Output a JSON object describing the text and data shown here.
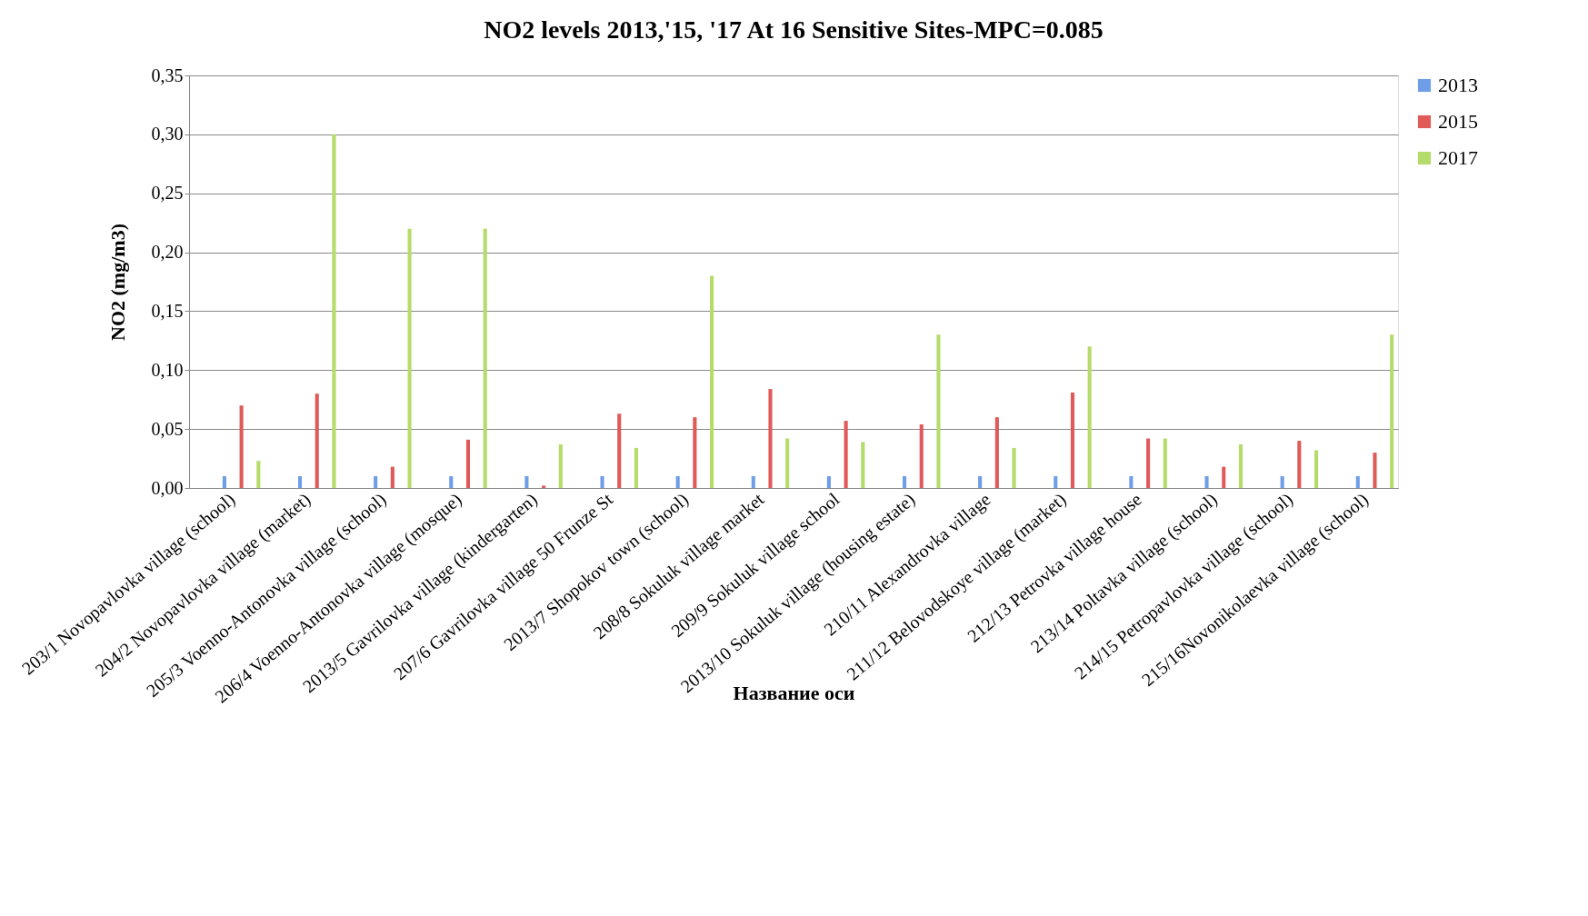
{
  "chart_data": {
    "type": "bar",
    "title": "NO2 levels 2013,'15, '17 At 16 Sensitive Sites-MPC=0.085",
    "xlabel": "Название оси",
    "ylabel": "NO2  (mg/m3)",
    "categories": [
      "203/1 Novopavlovka village (school)",
      "204/2 Novopavlovka village (market)",
      "205/3 Voenno-Antonovka village (school)",
      "206/4 Voenno-Antonovka village (mosque)",
      "2013/5 Gavrilovka village (kindergarten)",
      "207/6 Gavrilovka village 50 Frunze St",
      "2013/7 Shopokov town (school)",
      "208/8 Sokuluk village market",
      "209/9 Sokuluk village school",
      "2013/10 Sokuluk village (housing estate)",
      "210/11 Alexandrovka village",
      "211/12 Belovodskoye village (market)",
      "212/13 Petrovka village house",
      "213/14 Poltavka village (school)",
      "214/15 Petropavlovka village (school)",
      "215/16Novonikolaevka village (school)"
    ],
    "series": [
      {
        "name": "2013",
        "color": "#6f9ee8",
        "values": [
          0.01,
          0.01,
          0.01,
          0.01,
          0.01,
          0.01,
          0.01,
          0.01,
          0.01,
          0.01,
          0.01,
          0.01,
          0.01,
          0.01,
          0.01,
          0.01
        ]
      },
      {
        "name": "2015",
        "color": "#e05a5a",
        "values": [
          0.07,
          0.08,
          0.018,
          0.041,
          0.002,
          0.063,
          0.06,
          0.084,
          0.057,
          0.054,
          0.06,
          0.081,
          0.042,
          0.018,
          0.04,
          0.03
        ]
      },
      {
        "name": "2017",
        "color": "#b5dc6a",
        "values": [
          0.023,
          0.3,
          0.22,
          0.22,
          0.037,
          0.034,
          0.18,
          0.042,
          0.039,
          0.13,
          0.034,
          0.12,
          0.042,
          0.037,
          0.032,
          0.13
        ]
      }
    ],
    "ylim": [
      0,
      0.35
    ],
    "yticks": [
      {
        "value": 0,
        "label": "0,00"
      },
      {
        "value": 0.05,
        "label": "0,05"
      },
      {
        "value": 0.1,
        "label": "0,10"
      },
      {
        "value": 0.15,
        "label": "0,15"
      },
      {
        "value": 0.2,
        "label": "0,20"
      },
      {
        "value": 0.25,
        "label": "0,25"
      },
      {
        "value": 0.3,
        "label": "0,30"
      },
      {
        "value": 0.35,
        "label": "0,35"
      }
    ],
    "grid": "y",
    "legend": "right"
  }
}
